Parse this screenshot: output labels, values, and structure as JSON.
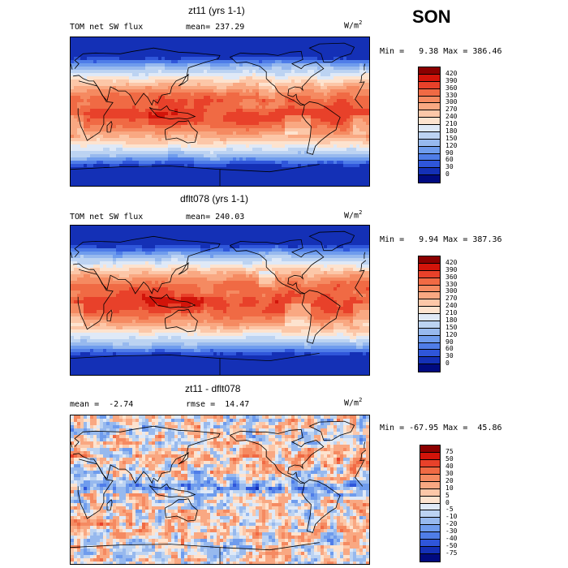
{
  "season": "SON",
  "panels": [
    {
      "id": "p1",
      "title": "zt11 (yrs 1-1)",
      "left_text": "TOM net SW flux",
      "mid_text": "mean= 237.29",
      "units_base": "W/m",
      "units_sup": "2",
      "minmax": "Min =   9.38 Max = 386.46",
      "kind": "abs"
    },
    {
      "id": "p2",
      "title": "dflt078 (yrs 1-1)",
      "left_text": "TOM net SW flux",
      "mid_text": "mean= 240.03",
      "units_base": "W/m",
      "units_sup": "2",
      "minmax": "Min =   9.94 Max = 387.36",
      "kind": "abs"
    },
    {
      "id": "p3",
      "title": "zt11 - dflt078",
      "left_text": "mean =  -2.74",
      "mid_text": "rmse =  14.47",
      "units_base": "W/m",
      "units_sup": "2",
      "minmax": "Min = -67.95 Max =  45.86",
      "kind": "diff"
    }
  ],
  "chart_data": [
    {
      "type": "heatmap",
      "title": "zt11 (yrs 1-1)",
      "variable": "TOM net SW flux",
      "mean": 237.29,
      "min": 9.38,
      "max": 386.46,
      "units": "W/m2",
      "colorbar_levels": [
        "420",
        "390",
        "360",
        "330",
        "300",
        "270",
        "240",
        "210",
        "180",
        "150",
        "120",
        "90",
        "60",
        "30",
        "0"
      ],
      "colorbar_colors": [
        "#8b0000",
        "#d2140a",
        "#e8412a",
        "#f06a44",
        "#f58a61",
        "#f9a882",
        "#fcc7a8",
        "#fde3cf",
        "#dfe9f7",
        "#bcd3f2",
        "#97b9ee",
        "#6f9ced",
        "#4f7de8",
        "#2f56da",
        "#1430b6",
        "#000a80"
      ]
    },
    {
      "type": "heatmap",
      "title": "dflt078 (yrs 1-1)",
      "variable": "TOM net SW flux",
      "mean": 240.03,
      "min": 9.94,
      "max": 387.36,
      "units": "W/m2",
      "colorbar_levels": [
        "420",
        "390",
        "360",
        "330",
        "300",
        "270",
        "240",
        "210",
        "180",
        "150",
        "120",
        "90",
        "60",
        "30",
        "0"
      ],
      "colorbar_colors": [
        "#8b0000",
        "#d2140a",
        "#e8412a",
        "#f06a44",
        "#f58a61",
        "#f9a882",
        "#fcc7a8",
        "#fde3cf",
        "#dfe9f7",
        "#bcd3f2",
        "#97b9ee",
        "#6f9ced",
        "#4f7de8",
        "#2f56da",
        "#1430b6",
        "#000a80"
      ]
    },
    {
      "type": "heatmap",
      "title": "zt11 - dflt078",
      "mean": -2.74,
      "rmse": 14.47,
      "min": -67.95,
      "max": 45.86,
      "units": "W/m2",
      "colorbar_levels": [
        "75",
        "50",
        "40",
        "30",
        "20",
        "10",
        "5",
        "0",
        "-5",
        "-10",
        "-20",
        "-30",
        "-40",
        "-50",
        "-75"
      ],
      "colorbar_colors": [
        "#8b0000",
        "#d2140a",
        "#e8412a",
        "#f06a44",
        "#f58a61",
        "#f9a882",
        "#fcc7a8",
        "#fde3cf",
        "#dfe9f7",
        "#bcd3f2",
        "#97b9ee",
        "#6f9ced",
        "#4f7de8",
        "#2f56da",
        "#1430b6",
        "#000a80"
      ]
    }
  ]
}
